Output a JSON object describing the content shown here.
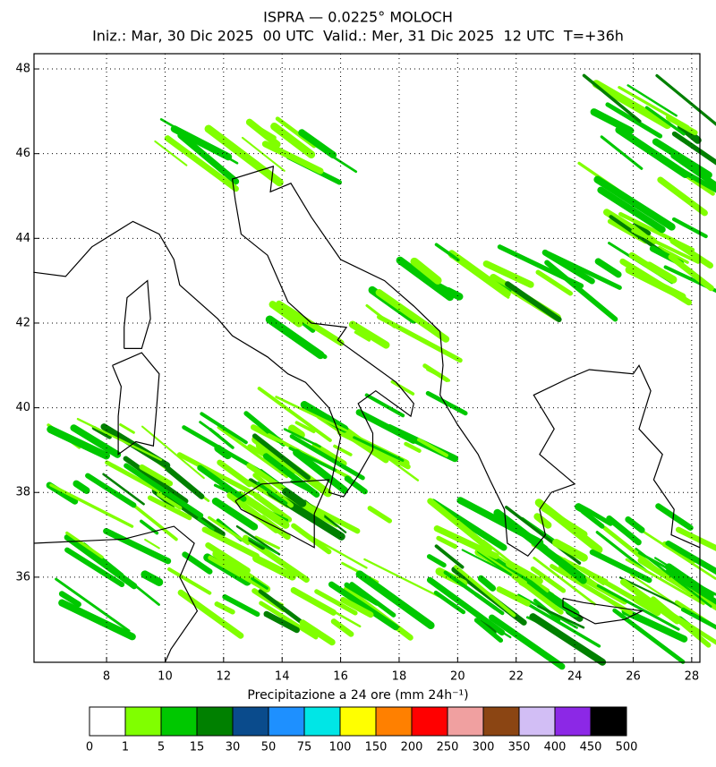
{
  "header": {
    "title": "ISPRA — 0.0225° MOLOCH",
    "subtitle": "Iniz.: Mar, 30 Dic 2025  00 UTC  Valid.: Mer, 31 Dic 2025  12 UTC  T=+36h"
  },
  "map": {
    "xlim": [
      5.52,
      28.28
    ],
    "ylim": [
      33.99,
      48.36
    ],
    "xticks": [
      8,
      10,
      12,
      14,
      16,
      18,
      20,
      22,
      24,
      26,
      28
    ],
    "yticks": [
      36,
      38,
      40,
      42,
      44,
      46,
      48
    ],
    "grid": true
  },
  "legend": {
    "title": "Precipitazione a 24 ore (mm 24h⁻¹)",
    "levels": [
      0,
      1,
      5,
      15,
      30,
      50,
      75,
      100,
      150,
      200,
      250,
      300,
      350,
      400,
      450,
      500
    ],
    "colors": [
      "#ffffff",
      "#80ff00",
      "#00c800",
      "#008000",
      "#0a4b8c",
      "#1e90ff",
      "#00e6e6",
      "#ffff00",
      "#ff8000",
      "#ff0000",
      "#f0a0a0",
      "#8b4513",
      "#d2bef5",
      "#8c28e6",
      "#000000"
    ]
  }
}
